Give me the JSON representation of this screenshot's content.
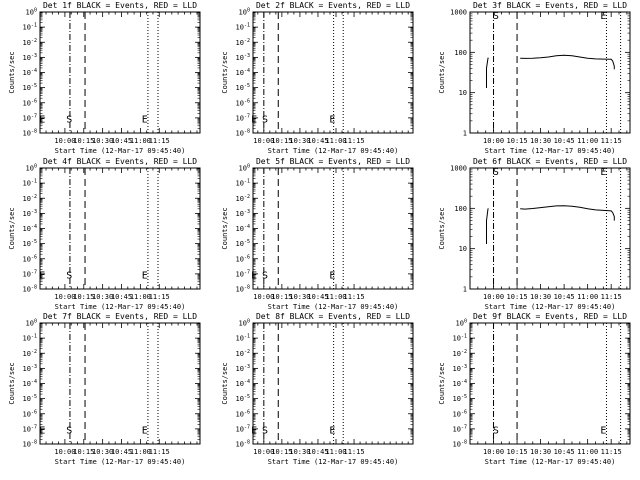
{
  "chart_data": [
    {
      "type": "line",
      "title": "Det 1f BLACK = Events, RED = LLD",
      "xlabel": "Start Time (12-Mar-17 09:45:40)",
      "ylabel": "Counts/sec",
      "yscale": "log",
      "ylim": [
        0.5,
        60000
      ],
      "ytick_labels": [
        "10^0",
        "10^-1",
        "10^-2",
        "10^-3",
        "10^-4",
        "10^-5",
        "10^-6",
        "10^-7",
        "10^-8"
      ],
      "xlim": [
        -19.8,
        107.4
      ],
      "xtick_values": [
        0,
        15,
        30,
        45,
        60,
        75
      ],
      "xtick_labels": [
        "10:00",
        "10:15",
        "10:30",
        "10:45",
        "11:00",
        "11:15"
      ],
      "vlines": [
        {
          "x": 4.0,
          "style": "dash-dot"
        },
        {
          "x": 16.0,
          "style": "dashed"
        },
        {
          "x": 66.0,
          "style": "dotted"
        },
        {
          "x": 74.0,
          "style": "dotted"
        }
      ],
      "markers": [
        {
          "label": "E",
          "x": -18.0,
          "y": 2.0
        },
        {
          "label": "S",
          "x": 3.5,
          "y": 2.0
        },
        {
          "label": "E",
          "x": 63.5,
          "y": 2.0
        }
      ],
      "series": []
    },
    {
      "type": "line",
      "title": "Det 2f BLACK = Events, RED = LLD",
      "xlabel": "Start Time (12-Mar-17 09:45:40)",
      "ylabel": "Counts/sec",
      "yscale": "log",
      "ylim": [
        0.5,
        60000
      ],
      "ytick_labels": [
        "10^0",
        "10^-1",
        "10^-2",
        "10^-3",
        "10^-4",
        "10^-5",
        "10^-6",
        "10^-7",
        "10^-8"
      ],
      "xlim": [
        -9.0,
        124.0
      ],
      "xtick_values": [
        0,
        15,
        30,
        45,
        60,
        75
      ],
      "xtick_labels": [
        "10:00",
        "10:15",
        "10:30",
        "10:45",
        "11:00",
        "11:15"
      ],
      "vlines": [
        {
          "x": 0.0,
          "style": "dash-dot"
        },
        {
          "x": 12.0,
          "style": "dashed"
        },
        {
          "x": 58.0,
          "style": "dotted"
        },
        {
          "x": 66.0,
          "style": "dotted"
        }
      ],
      "markers": [
        {
          "label": "E",
          "x": -8.0,
          "y": 2.0
        },
        {
          "label": "S",
          "x": 1.0,
          "y": 2.0
        },
        {
          "label": "E",
          "x": 57.0,
          "y": 2.0
        }
      ],
      "series": []
    },
    {
      "type": "line",
      "title": "Det 3f BLACK = Events, RED = LLD",
      "xlabel": "Start Time (12-Mar-17 09:45:40)",
      "ylabel": "Counts/sec",
      "yscale": "log",
      "ylim": [
        1,
        1200
      ],
      "ytick_labels": [
        "1000",
        "100",
        "10",
        "1"
      ],
      "xlim": [
        -15.0,
        87.0
      ],
      "xtick_values": [
        0,
        15,
        30,
        45,
        60,
        75
      ],
      "xtick_labels": [
        "10:00",
        "10:15",
        "10:30",
        "10:45",
        "11:00",
        "11:15"
      ],
      "vlines": [
        {
          "x": 0.0,
          "style": "dash-dot"
        },
        {
          "x": 15.0,
          "style": "dashed"
        },
        {
          "x": 72.0,
          "style": "dotted"
        },
        {
          "x": 81.0,
          "style": "dotted"
        }
      ],
      "markers": [
        {
          "label": "S",
          "x": 1.5,
          "y": 1000
        },
        {
          "label": "E",
          "x": 70.0,
          "y": 1000
        }
      ],
      "series": [
        {
          "x": [
            -4.5,
            -4.5,
            -3.5,
            -3.2
          ],
          "y": [
            14,
            45,
            80,
            82
          ]
        },
        {
          "x": [
            17,
            20,
            25,
            30,
            35,
            40,
            45,
            50,
            55,
            60,
            65,
            70,
            75,
            76,
            77,
            77
          ],
          "y": [
            80,
            79,
            80,
            82,
            86,
            92,
            95,
            92,
            86,
            80,
            77,
            76,
            75,
            68,
            50,
            42
          ]
        }
      ]
    },
    {
      "type": "line",
      "title": "Det 4f BLACK = Events, RED = LLD",
      "xlabel": "Start Time (12-Mar-17 09:45:40)",
      "ylabel": "Counts/sec",
      "yscale": "log",
      "ylim": [
        0.5,
        60000
      ],
      "ytick_labels": [
        "10^0",
        "10^-1",
        "10^-2",
        "10^-3",
        "10^-4",
        "10^-5",
        "10^-6",
        "10^-7",
        "10^-8"
      ],
      "xlim": [
        -19.8,
        107.4
      ],
      "xtick_values": [
        0,
        15,
        30,
        45,
        60,
        75
      ],
      "xtick_labels": [
        "10:00",
        "10:15",
        "10:30",
        "10:45",
        "11:00",
        "11:15"
      ],
      "vlines": [
        {
          "x": 4.0,
          "style": "dash-dot"
        },
        {
          "x": 16.0,
          "style": "dashed"
        },
        {
          "x": 66.0,
          "style": "dotted"
        },
        {
          "x": 74.0,
          "style": "dotted"
        }
      ],
      "markers": [
        {
          "label": "E",
          "x": -18.0,
          "y": 2.0
        },
        {
          "label": "S",
          "x": 3.5,
          "y": 2.0
        },
        {
          "label": "E",
          "x": 63.5,
          "y": 2.0
        }
      ],
      "series": []
    },
    {
      "type": "line",
      "title": "Det 5f BLACK = Events, RED = LLD",
      "xlabel": "Start Time (12-Mar-17 09:45:40)",
      "ylabel": "Counts/sec",
      "yscale": "log",
      "ylim": [
        0.5,
        60000
      ],
      "ytick_labels": [
        "10^0",
        "10^-1",
        "10^-2",
        "10^-3",
        "10^-4",
        "10^-5",
        "10^-6",
        "10^-7",
        "10^-8"
      ],
      "xlim": [
        -9.0,
        124.0
      ],
      "xtick_values": [
        0,
        15,
        30,
        45,
        60,
        75
      ],
      "xtick_labels": [
        "10:00",
        "10:15",
        "10:30",
        "10:45",
        "11:00",
        "11:15"
      ],
      "vlines": [
        {
          "x": 0.0,
          "style": "dash-dot"
        },
        {
          "x": 12.0,
          "style": "dashed"
        },
        {
          "x": 58.0,
          "style": "dotted"
        },
        {
          "x": 66.0,
          "style": "dotted"
        }
      ],
      "markers": [
        {
          "label": "E",
          "x": -8.0,
          "y": 2.0
        },
        {
          "label": "S",
          "x": 1.0,
          "y": 2.0
        },
        {
          "label": "E",
          "x": 57.0,
          "y": 2.0
        }
      ],
      "series": []
    },
    {
      "type": "line",
      "title": "Det 6f BLACK = Events, RED = LLD",
      "xlabel": "Start Time (12-Mar-17 09:45:40)",
      "ylabel": "Counts/sec",
      "yscale": "log",
      "ylim": [
        1,
        1200
      ],
      "ytick_labels": [
        "1000",
        "100",
        "10",
        "1"
      ],
      "xlim": [
        -15.0,
        87.0
      ],
      "xtick_values": [
        0,
        15,
        30,
        45,
        60,
        75
      ],
      "xtick_labels": [
        "10:00",
        "10:15",
        "10:30",
        "10:45",
        "11:00",
        "11:15"
      ],
      "vlines": [
        {
          "x": 0.0,
          "style": "dash-dot"
        },
        {
          "x": 15.0,
          "style": "dashed"
        },
        {
          "x": 72.0,
          "style": "dotted"
        },
        {
          "x": 81.0,
          "style": "dotted"
        }
      ],
      "markers": [
        {
          "label": "S",
          "x": 1.5,
          "y": 1000
        },
        {
          "label": "E",
          "x": 70.0,
          "y": 1000
        }
      ],
      "series": [
        {
          "x": [
            -4.5,
            -4.5,
            -3.5,
            -3.2
          ],
          "y": [
            14,
            55,
            110,
            112
          ]
        },
        {
          "x": [
            17,
            20,
            25,
            30,
            35,
            40,
            45,
            50,
            55,
            60,
            65,
            70,
            75,
            76,
            77,
            77
          ],
          "y": [
            110,
            108,
            112,
            118,
            124,
            130,
            132,
            128,
            120,
            110,
            103,
            100,
            97,
            88,
            70,
            55
          ]
        }
      ]
    },
    {
      "type": "line",
      "title": "Det 7f BLACK = Events, RED = LLD",
      "xlabel": "Start Time (12-Mar-17 09:45:40)",
      "ylabel": "Counts/sec",
      "yscale": "log",
      "ylim": [
        0.5,
        60000
      ],
      "ytick_labels": [
        "10^0",
        "10^-1",
        "10^-2",
        "10^-3",
        "10^-4",
        "10^-5",
        "10^-6",
        "10^-7",
        "10^-8"
      ],
      "xlim": [
        -19.8,
        107.4
      ],
      "xtick_values": [
        0,
        15,
        30,
        45,
        60,
        75
      ],
      "xtick_labels": [
        "10:00",
        "10:15",
        "10:30",
        "10:45",
        "11:00",
        "11:15"
      ],
      "vlines": [
        {
          "x": 4.0,
          "style": "dash-dot"
        },
        {
          "x": 16.0,
          "style": "dashed"
        },
        {
          "x": 66.0,
          "style": "dotted"
        },
        {
          "x": 74.0,
          "style": "dotted"
        }
      ],
      "markers": [
        {
          "label": "E",
          "x": -18.0,
          "y": 2.0
        },
        {
          "label": "S",
          "x": 3.5,
          "y": 2.0
        },
        {
          "label": "E",
          "x": 63.5,
          "y": 2.0
        }
      ],
      "series": []
    },
    {
      "type": "line",
      "title": "Det 8f BLACK = Events, RED = LLD",
      "xlabel": "Start Time (12-Mar-17 09:45:40)",
      "ylabel": "Counts/sec",
      "yscale": "log",
      "ylim": [
        0.5,
        60000
      ],
      "ytick_labels": [
        "10^0",
        "10^-1",
        "10^-2",
        "10^-3",
        "10^-4",
        "10^-5",
        "10^-6",
        "10^-7",
        "10^-8"
      ],
      "xlim": [
        -9.0,
        124.0
      ],
      "xtick_values": [
        0,
        15,
        30,
        45,
        60,
        75
      ],
      "xtick_labels": [
        "10:00",
        "10:15",
        "10:30",
        "10:45",
        "11:00",
        "11:15"
      ],
      "vlines": [
        {
          "x": 0.0,
          "style": "dash-dot"
        },
        {
          "x": 12.0,
          "style": "dashed"
        },
        {
          "x": 58.0,
          "style": "dotted"
        },
        {
          "x": 66.0,
          "style": "dotted"
        }
      ],
      "markers": [
        {
          "label": "E",
          "x": -8.0,
          "y": 2.0
        },
        {
          "label": "S",
          "x": 1.0,
          "y": 2.0
        },
        {
          "label": "E",
          "x": 57.0,
          "y": 2.0
        }
      ],
      "series": []
    },
    {
      "type": "line",
      "title": "Det 9f BLACK = Events, RED = LLD",
      "xlabel": "Start Time (12-Mar-17 09:45:40)",
      "ylabel": "Counts/sec",
      "yscale": "log",
      "ylim": [
        0.5,
        60000
      ],
      "ytick_labels": [
        "10^0",
        "10^-1",
        "10^-2",
        "10^-3",
        "10^-4",
        "10^-5",
        "10^-6",
        "10^-7",
        "10^-8"
      ],
      "xlim": [
        -15.0,
        87.0
      ],
      "xtick_values": [
        0,
        15,
        30,
        45,
        60,
        75
      ],
      "xtick_labels": [
        "10:00",
        "10:15",
        "10:30",
        "10:45",
        "11:00",
        "11:15"
      ],
      "vlines": [
        {
          "x": 0.0,
          "style": "dash-dot"
        },
        {
          "x": 15.0,
          "style": "dashed"
        },
        {
          "x": 72.0,
          "style": "dotted"
        },
        {
          "x": 81.0,
          "style": "dotted"
        }
      ],
      "markers": [
        {
          "label": "S",
          "x": 1.5,
          "y": 2.0
        },
        {
          "label": "E",
          "x": 70.0,
          "y": 2.0
        }
      ],
      "series": []
    }
  ]
}
